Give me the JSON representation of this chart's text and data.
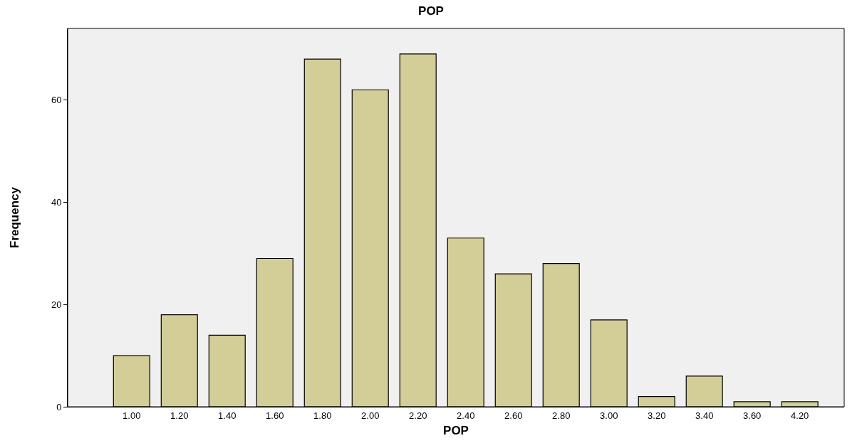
{
  "chart_data": {
    "type": "bar",
    "title": "POP",
    "xlabel": "POP",
    "ylabel": "Frequency",
    "categories": [
      "1.00",
      "1.20",
      "1.40",
      "1.60",
      "1.80",
      "2.00",
      "2.20",
      "2.40",
      "2.60",
      "2.80",
      "3.00",
      "3.20",
      "3.40",
      "3.60",
      "4.20"
    ],
    "values": [
      10,
      18,
      14,
      29,
      68,
      62,
      69,
      33,
      26,
      28,
      17,
      2,
      6,
      1,
      1
    ],
    "color": "#d3ce97",
    "ylim": [
      0,
      74
    ],
    "yticks": [
      0,
      20,
      40,
      60
    ],
    "grid": false,
    "legend": false
  }
}
